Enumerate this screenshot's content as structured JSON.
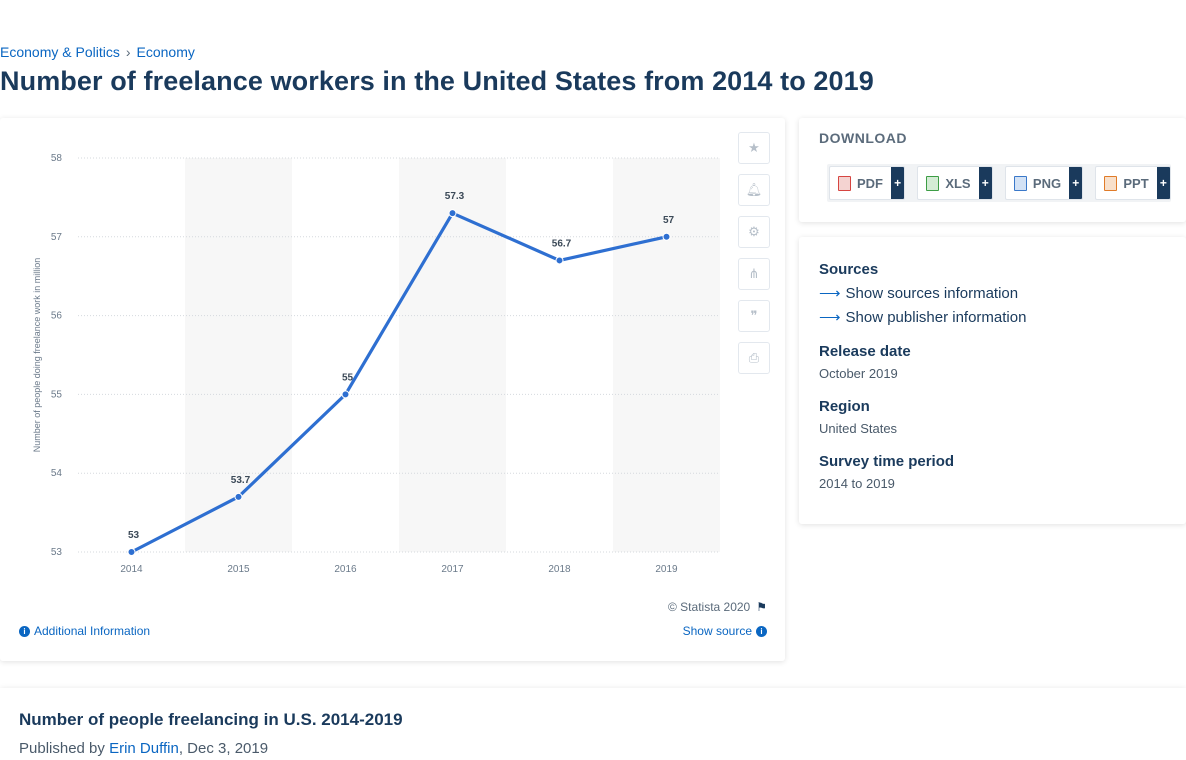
{
  "breadcrumb": {
    "items": [
      "Economy & Politics",
      "Economy"
    ],
    "separator": "›"
  },
  "page_title": "Number of freelance workers in the United States from 2014 to 2019",
  "chart_data": {
    "type": "line",
    "categories": [
      "2014",
      "2015",
      "2016",
      "2017",
      "2018",
      "2019"
    ],
    "values": [
      53,
      53.7,
      55,
      57.3,
      56.7,
      57
    ],
    "data_labels": [
      "53",
      "53.7",
      "55",
      "57.3",
      "56.7",
      "57"
    ],
    "ylabel": "Number of people doing freelance work in million",
    "ylim": [
      53,
      58
    ],
    "yticks": [
      "53",
      "54",
      "55",
      "56",
      "57",
      "58"
    ],
    "grid": true,
    "line_color": "#2e6fd1",
    "band_color": "#f7f7f7"
  },
  "toolbar": {
    "icons": [
      "star-icon",
      "bell-icon",
      "gear-icon",
      "share-icon",
      "quote-icon",
      "print-icon"
    ]
  },
  "chart_footer": {
    "copyright": "© Statista 2020",
    "additional_info": "Additional Information",
    "show_source": "Show source"
  },
  "download": {
    "title": "DOWNLOAD",
    "buttons": [
      {
        "label": "PDF",
        "color": "#d64541"
      },
      {
        "label": "XLS",
        "color": "#3d9d45"
      },
      {
        "label": "PNG",
        "color": "#3a78c9"
      },
      {
        "label": "PPT",
        "color": "#e07b28"
      }
    ],
    "plus": "+"
  },
  "info": {
    "sources_label": "Sources",
    "show_sources": "Show sources information",
    "show_publisher": "Show publisher information",
    "release_label": "Release date",
    "release_value": "October 2019",
    "region_label": "Region",
    "region_value": "United States",
    "survey_label": "Survey time period",
    "survey_value": "2014 to 2019"
  },
  "bottom": {
    "title": "Number of people freelancing in U.S. 2014-2019",
    "published_prefix": "Published by",
    "author": "Erin Duffin",
    "date": ", Dec 3, 2019"
  }
}
